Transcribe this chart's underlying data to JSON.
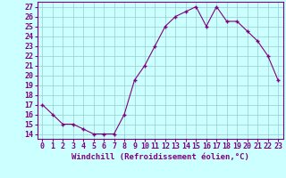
{
  "x": [
    0,
    1,
    2,
    3,
    4,
    5,
    6,
    7,
    8,
    9,
    10,
    11,
    12,
    13,
    14,
    15,
    16,
    17,
    18,
    19,
    20,
    21,
    22,
    23
  ],
  "y": [
    17.0,
    16.0,
    15.0,
    15.0,
    14.5,
    14.0,
    14.0,
    14.0,
    16.0,
    19.5,
    21.0,
    23.0,
    25.0,
    26.0,
    26.5,
    27.0,
    25.0,
    27.0,
    25.5,
    25.5,
    24.5,
    23.5,
    22.0,
    19.5
  ],
  "line_color": "#800080",
  "marker": "+",
  "bg_color": "#ccffff",
  "grid_color": "#99cccc",
  "xlabel": "Windchill (Refroidissement éolien,°C)",
  "xlim": [
    -0.5,
    23.5
  ],
  "ylim": [
    13.5,
    27.5
  ],
  "yticks": [
    14,
    15,
    16,
    17,
    18,
    19,
    20,
    21,
    22,
    23,
    24,
    25,
    26,
    27
  ],
  "xtick_labels": [
    "0",
    "1",
    "2",
    "3",
    "4",
    "5",
    "6",
    "7",
    "8",
    "9",
    "10",
    "11",
    "12",
    "13",
    "14",
    "15",
    "16",
    "17",
    "18",
    "19",
    "20",
    "21",
    "22",
    "23"
  ],
  "label_fontsize": 6.5,
  "tick_fontsize": 6.0
}
